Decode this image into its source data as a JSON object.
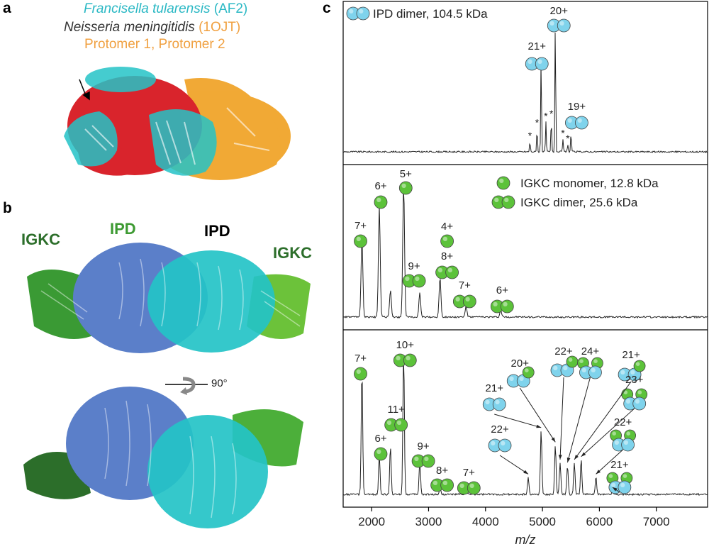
{
  "panel_a": {
    "letter": "a",
    "line1_species": "Francisella tularensis",
    "line1_suffix": "(AF2)",
    "line2_species": "Neisseria meningitidis",
    "line2_suffix": "(1OJT)",
    "line3": "Protomer 1, Protomer 2"
  },
  "panel_b": {
    "letter": "b",
    "labels": {
      "igkc_left": "IGKC",
      "ipd_left": "IPD",
      "ipd_right": "IPD",
      "igkc_right": "IGKC"
    },
    "rotation": "90°"
  },
  "panel_c": {
    "letter": "c"
  },
  "colors": {
    "ipd_light": "#6fb3e6",
    "ipd_blue": "#5b7fc9",
    "ipd_cyan": "#24c3c7",
    "igkc_green": "#4caf3a",
    "igkc_dark": "#2c6e2a",
    "red": "#d9242c",
    "orange": "#f0a020",
    "cyan_text": "#2ab8c4",
    "orange_text": "#f0a040",
    "mol_blue_ball": "#7fd3ec",
    "mol_green_ball": "#5cc23a"
  },
  "chart_data": {
    "type": "line",
    "xlabel": "m/z",
    "xlim": [
      1500,
      7900
    ],
    "xticks": [
      2000,
      3000,
      4000,
      5000,
      6000,
      7000
    ],
    "legend_ipd": "IPD dimer, 104.5 kDa",
    "legend_igkc_monomer": "IGKC monomer, 12.8 kDa",
    "legend_igkc_dimer": "IGKC dimer, 25.6 kDa",
    "top": {
      "peaks": [
        {
          "charge": "21+",
          "mz": 4977,
          "rel": 0.74
        },
        {
          "charge": "20+",
          "mz": 5226,
          "rel": 1.0
        },
        {
          "charge": "19+",
          "mz": 5502,
          "rel": 0.15
        }
      ],
      "star_mz": [
        4780,
        4905,
        5060,
        5155,
        5360,
        5445
      ]
    },
    "middle": {
      "peaks": [
        {
          "charge": "7+",
          "mz": 1830,
          "rel": 0.6,
          "species": "monomer"
        },
        {
          "charge": "6+",
          "mz": 2135,
          "rel": 0.83,
          "species": "monomer"
        },
        {
          "charge": "5+",
          "mz": 2562,
          "rel": 1.0,
          "species": "monomer"
        },
        {
          "charge": "4+",
          "mz": 3201,
          "rel": 0.3,
          "species": "monomer"
        },
        {
          "charge": "9+",
          "mz": 2846,
          "rel": 0.18,
          "species": "dimer"
        },
        {
          "charge": "8+",
          "mz": 3201,
          "rel": 0.3,
          "species": "dimer"
        },
        {
          "charge": "7+",
          "mz": 3658,
          "rel": 0.08,
          "species": "dimer"
        },
        {
          "charge": "6+",
          "mz": 4268,
          "rel": 0.05,
          "species": "dimer"
        }
      ]
    },
    "bottom": {
      "peaks": [
        {
          "charge": "7+",
          "mz": 1830,
          "rel": 0.86,
          "species": "monomer"
        },
        {
          "charge": "6+",
          "mz": 2135,
          "rel": 0.28,
          "species": "monomer"
        },
        {
          "charge": "11+",
          "mz": 2330,
          "rel": 0.33,
          "species": "dimer"
        },
        {
          "charge": "10+",
          "mz": 2562,
          "rel": 1.0,
          "species": "dimer"
        },
        {
          "charge": "9+",
          "mz": 2846,
          "rel": 0.24,
          "species": "dimer"
        },
        {
          "charge": "8+",
          "mz": 3201,
          "rel": 0.05,
          "species": "dimer"
        },
        {
          "charge": "7+",
          "mz": 3658,
          "rel": 0.03,
          "species": "dimer"
        },
        {
          "charge": "22+",
          "mz": 4750,
          "rel": 0.12,
          "species": "ipd"
        },
        {
          "charge": "21+",
          "mz": 4977,
          "rel": 0.44,
          "species": "ipd"
        },
        {
          "charge": "20+",
          "mz": 5226,
          "rel": 0.34,
          "species": "ipd_igkc"
        },
        {
          "charge": "22+",
          "mz": 5310,
          "rel": 0.22,
          "species": "ipd_igkc"
        },
        {
          "charge": "24+",
          "mz": 5440,
          "rel": 0.2,
          "species": "ipd_igkc2"
        },
        {
          "charge": "21+",
          "mz": 5560,
          "rel": 0.22,
          "species": "ipd_igkc"
        },
        {
          "charge": "23+",
          "mz": 5680,
          "rel": 0.24,
          "species": "ipd_igkc2"
        },
        {
          "charge": "22+",
          "mz": 5940,
          "rel": 0.12,
          "species": "ipd_igkc2"
        },
        {
          "charge": "21+",
          "mz": 6230,
          "rel": 0.03,
          "species": "ipd_igkc2"
        }
      ]
    }
  }
}
